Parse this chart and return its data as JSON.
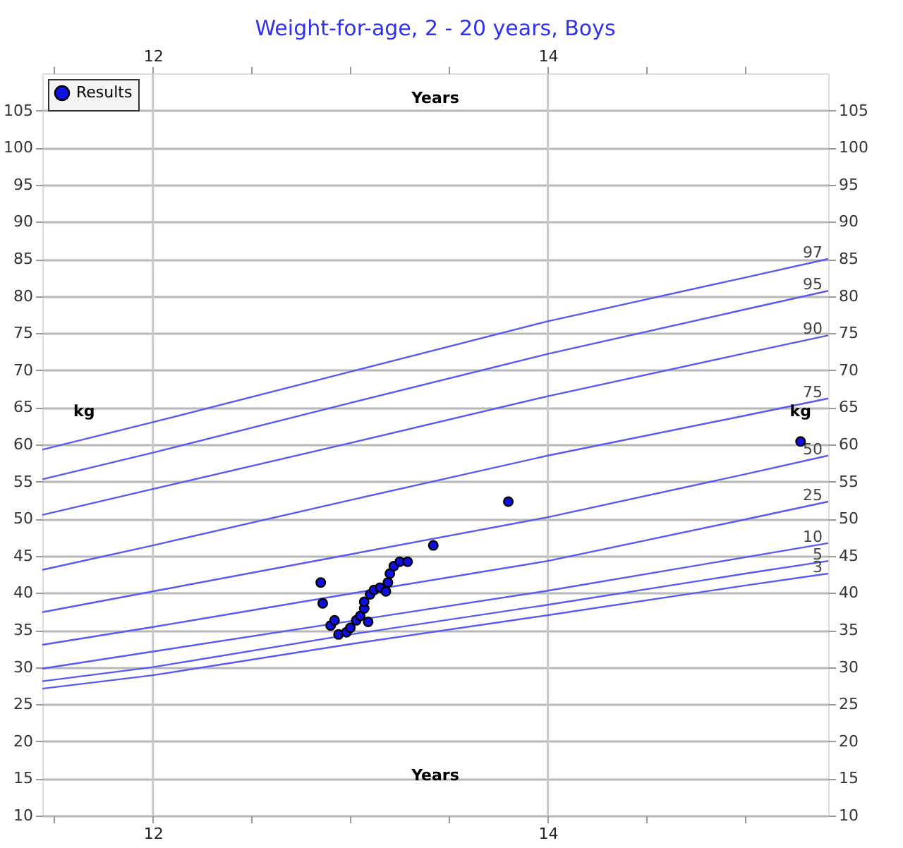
{
  "chart_data": {
    "type": "line",
    "title": "Weight-for-age, 2 - 20 years, Boys",
    "xlabel": "Years",
    "x2label": "Years",
    "ylabel": "kg",
    "y2label": "kg",
    "xlim": [
      11.44,
      15.42
    ],
    "x2lim": [
      11.44,
      15.42
    ],
    "xticks": [
      {
        "value": 11.5,
        "label": null
      },
      12,
      {
        "value": 12.5,
        "label": null
      },
      {
        "value": 13,
        "label": null
      },
      {
        "value": 13.5,
        "label": null
      },
      14,
      {
        "value": 14.5,
        "label": null
      },
      {
        "value": 15,
        "label": null
      }
    ],
    "x2ticks": [
      {
        "value": 11.5,
        "label": null
      },
      12,
      {
        "value": 12.5,
        "label": null
      },
      {
        "value": 13,
        "label": null
      },
      {
        "value": 13.5,
        "label": null
      },
      14,
      {
        "value": 14.5,
        "label": null
      },
      {
        "value": 15,
        "label": null
      }
    ],
    "ylim": [
      10,
      110
    ],
    "y2lim": [
      10,
      110
    ],
    "yticks": [
      10,
      15,
      20,
      25,
      30,
      35,
      40,
      45,
      50,
      55,
      60,
      65,
      70,
      75,
      80,
      85,
      90,
      95,
      100,
      105
    ],
    "y2ticks": [
      10,
      15,
      20,
      25,
      30,
      35,
      40,
      45,
      50,
      55,
      60,
      65,
      70,
      75,
      80,
      85,
      90,
      95,
      100,
      105
    ],
    "grid": true,
    "legend": "top left",
    "line_style": "solid",
    "x": [
      11.44,
      12,
      13,
      14,
      15,
      15.42
    ],
    "series": [
      {
        "name": "97",
        "color": "#5a5af0",
        "values": [
          59.3,
          63.0,
          69.8,
          76.6,
          82.5,
          85.0
        ]
      },
      {
        "name": "95",
        "color": "#5a5af0",
        "values": [
          55.3,
          58.9,
          65.6,
          72.2,
          78.2,
          80.7
        ]
      },
      {
        "name": "90",
        "color": "#5a5af0",
        "values": [
          50.5,
          54.0,
          60.2,
          66.5,
          72.3,
          74.7
        ]
      },
      {
        "name": "75",
        "color": "#5a5af0",
        "values": [
          43.1,
          46.4,
          52.5,
          58.5,
          63.9,
          66.2
        ]
      },
      {
        "name": "50",
        "color": "#5a5af0",
        "values": [
          37.4,
          40.2,
          45.2,
          50.2,
          56.0,
          58.5
        ]
      },
      {
        "name": "25",
        "color": "#5a5af0",
        "values": [
          33.0,
          35.4,
          39.9,
          44.3,
          49.9,
          52.3
        ]
      },
      {
        "name": "10",
        "color": "#5a5af0",
        "values": [
          29.8,
          32.1,
          36.2,
          40.3,
          44.8,
          46.7
        ]
      },
      {
        "name": "5",
        "color": "#5a5af0",
        "values": [
          28.1,
          30.0,
          34.4,
          38.4,
          42.6,
          44.3
        ]
      },
      {
        "name": "3",
        "color": "#5a5af0",
        "values": [
          27.1,
          28.9,
          33.1,
          37.0,
          41.0,
          42.6
        ]
      },
      {
        "name": "Results",
        "type": "scatter",
        "marker": "circle",
        "color": "#1010e0",
        "x": [
          12.85,
          12.86,
          12.9,
          12.92,
          12.94,
          12.98,
          13.0,
          13.03,
          13.05,
          13.07,
          13.09,
          13.07,
          13.1,
          13.12,
          13.15,
          13.18,
          13.19,
          13.2,
          13.22,
          13.25,
          13.29,
          13.42,
          13.8,
          15.28
        ],
        "values": [
          41.4,
          38.6,
          35.6,
          36.3,
          34.4,
          34.7,
          35.3,
          36.3,
          36.9,
          37.9,
          36.1,
          38.8,
          39.8,
          40.4,
          40.7,
          40.2,
          41.4,
          42.6,
          43.6,
          44.2,
          44.2,
          46.4,
          52.3,
          60.4
        ]
      }
    ]
  }
}
